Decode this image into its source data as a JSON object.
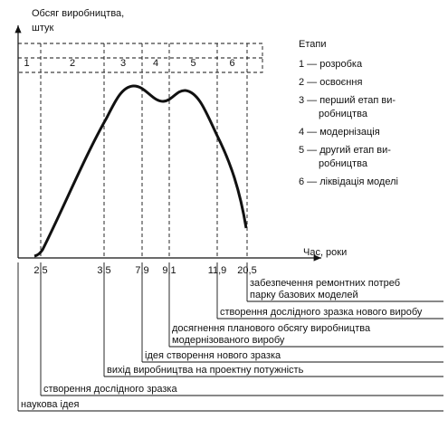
{
  "axis": {
    "y_label": [
      "Обсяг виробництва,",
      "штук"
    ],
    "x_label": "Час, роки",
    "ticks": [
      "2,5",
      "3,5",
      "7,9",
      "9,1",
      "11,9",
      "20,5"
    ]
  },
  "stages": [
    "1",
    "2",
    "3",
    "4",
    "5",
    "6"
  ],
  "legend": {
    "title": "Етапи",
    "items": [
      [
        "1 — розробка"
      ],
      [
        "2 — освоєння"
      ],
      [
        "3 — перший етап ви-",
        "робництва"
      ],
      [
        "4 — модернізація"
      ],
      [
        "5 — другий етап ви-",
        "робництва"
      ],
      [
        "6 — ліквідація моделі"
      ]
    ]
  },
  "events": [
    [
      "забезпечення ремонтних потреб",
      "парку базових моделей"
    ],
    [
      "створення дослідного зразка нового виробу"
    ],
    [
      "досягнення планового обсягу виробництва",
      "модернізованого виробу"
    ],
    [
      "ідея створення нового зразка"
    ],
    [
      "вихід виробництва на проектну потужність"
    ],
    [
      "створення дослідного зразка"
    ],
    [
      "наукова ідея"
    ]
  ]
}
